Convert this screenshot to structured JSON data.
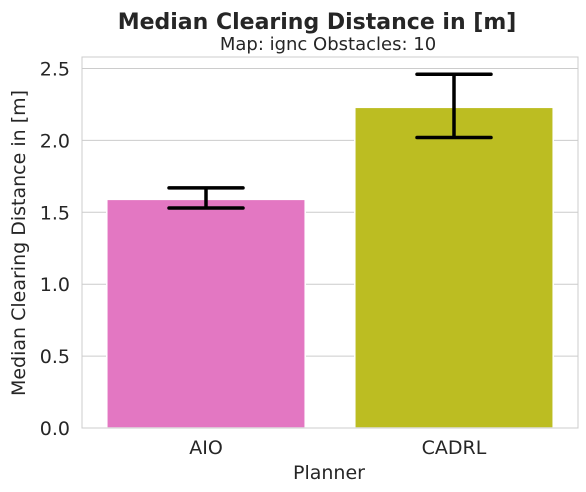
{
  "chart_data": {
    "type": "bar",
    "title": "Median Clearing Distance in [m]",
    "subtitle": "Map: ignc Obstacles: 10",
    "xlabel": "Planner",
    "ylabel": "Median Clearing Distance in [m]",
    "categories": [
      "AIO",
      "CADRL"
    ],
    "values": [
      1.59,
      2.23
    ],
    "error_low": [
      1.53,
      2.02
    ],
    "error_high": [
      1.67,
      2.46
    ],
    "bar_colors": [
      "#e377c2",
      "#bcbd22"
    ],
    "error_color": "#000000",
    "ylim": [
      0,
      2.58
    ],
    "yticks": [
      "0.0",
      "0.5",
      "1.0",
      "1.5",
      "2.0",
      "2.5"
    ],
    "grid": true
  }
}
